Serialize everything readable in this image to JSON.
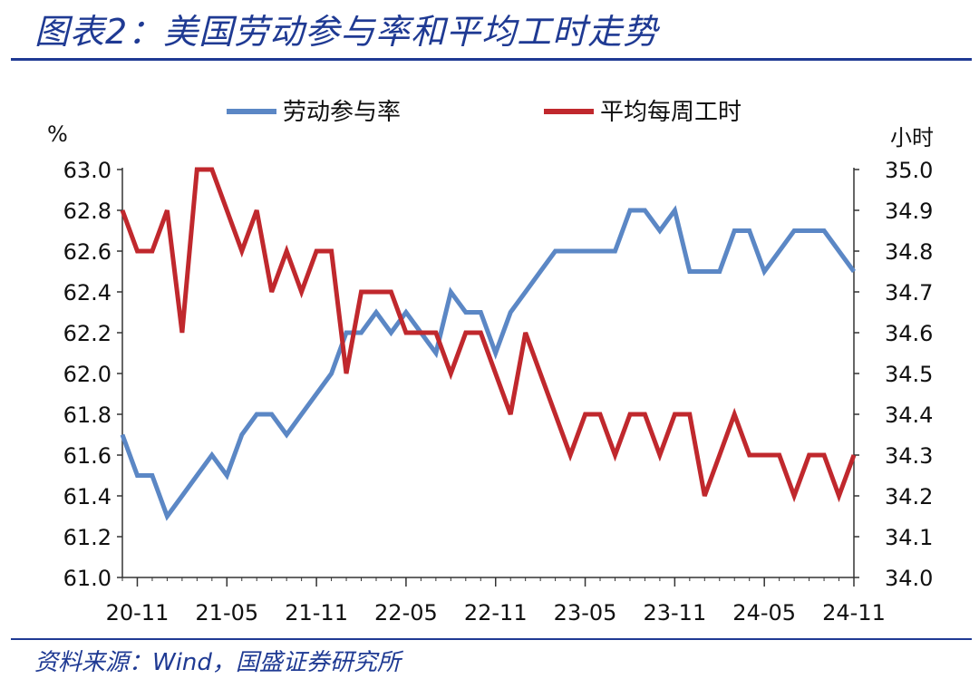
{
  "header": {
    "title": "图表2：美国劳动参与率和平均工时走势"
  },
  "footer": {
    "source": "资料来源：Wind，国盛证券研究所"
  },
  "chart_data": {
    "type": "line",
    "legend_position": "top-center",
    "grid": false,
    "left_axis": {
      "unit": "%",
      "ylim": [
        61.0,
        63.0
      ],
      "ticks": [
        "61.0",
        "61.2",
        "61.4",
        "61.6",
        "61.8",
        "62.0",
        "62.2",
        "62.4",
        "62.6",
        "62.8",
        "63.0"
      ]
    },
    "right_axis": {
      "unit": "小时",
      "ylim": [
        34.0,
        35.0
      ],
      "ticks": [
        "34.0",
        "34.1",
        "34.2",
        "34.3",
        "34.4",
        "34.5",
        "34.6",
        "34.7",
        "34.8",
        "34.9",
        "35.0"
      ]
    },
    "x_tick_labels": [
      "20-11",
      "21-05",
      "21-11",
      "22-05",
      "22-11",
      "23-05",
      "23-11",
      "24-05",
      "24-11"
    ],
    "x": [
      "20-10",
      "20-11",
      "20-12",
      "21-01",
      "21-02",
      "21-03",
      "21-04",
      "21-05",
      "21-06",
      "21-07",
      "21-08",
      "21-09",
      "21-10",
      "21-11",
      "21-12",
      "22-01",
      "22-02",
      "22-03",
      "22-04",
      "22-05",
      "22-06",
      "22-07",
      "22-08",
      "22-09",
      "22-10",
      "22-11",
      "22-12",
      "23-01",
      "23-02",
      "23-03",
      "23-04",
      "23-05",
      "23-06",
      "23-07",
      "23-08",
      "23-09",
      "23-10",
      "23-11",
      "23-12",
      "24-01",
      "24-02",
      "24-03",
      "24-04",
      "24-05",
      "24-06",
      "24-07",
      "24-08",
      "24-09",
      "24-10",
      "24-11"
    ],
    "series": [
      {
        "name": "劳动参与率",
        "axis": "left",
        "color": "#5b87c5",
        "values": [
          61.7,
          61.5,
          61.5,
          61.3,
          61.4,
          61.5,
          61.6,
          61.5,
          61.7,
          61.8,
          61.8,
          61.7,
          61.8,
          61.9,
          62.0,
          62.2,
          62.2,
          62.3,
          62.2,
          62.3,
          62.2,
          62.1,
          62.4,
          62.3,
          62.3,
          62.1,
          62.3,
          62.4,
          62.5,
          62.6,
          62.6,
          62.6,
          62.6,
          62.6,
          62.8,
          62.8,
          62.7,
          62.8,
          62.5,
          62.5,
          62.5,
          62.7,
          62.7,
          62.5,
          62.6,
          62.7,
          62.7,
          62.7,
          62.6,
          62.5
        ]
      },
      {
        "name": "平均每周工时",
        "axis": "right",
        "color": "#c0282d",
        "values": [
          34.9,
          34.8,
          34.8,
          34.9,
          34.6,
          35.0,
          35.0,
          34.9,
          34.8,
          34.9,
          34.7,
          34.8,
          34.7,
          34.8,
          34.8,
          34.5,
          34.7,
          34.7,
          34.7,
          34.6,
          34.6,
          34.6,
          34.5,
          34.6,
          34.6,
          34.5,
          34.4,
          34.6,
          34.5,
          34.4,
          34.3,
          34.4,
          34.4,
          34.3,
          34.4,
          34.4,
          34.3,
          34.4,
          34.4,
          34.2,
          34.3,
          34.4,
          34.3,
          34.3,
          34.3,
          34.2,
          34.3,
          34.3,
          34.2,
          34.3
        ]
      }
    ]
  }
}
